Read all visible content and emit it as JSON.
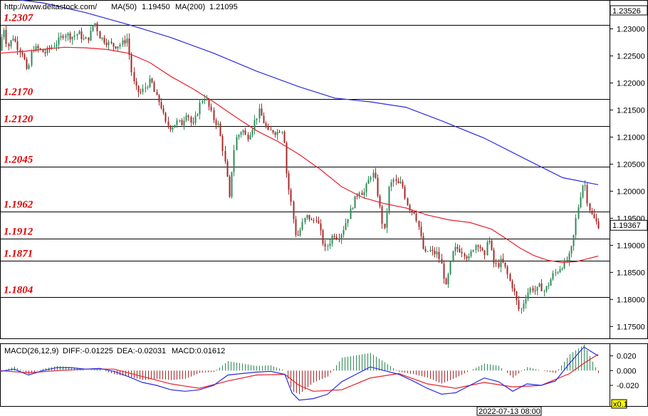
{
  "header": {
    "site": "http://www.deltastock.com/",
    "ma50_label": "MA(50)",
    "ma50_value": "1.19450",
    "ma200_label": "MA(200)",
    "ma200_value": "1.21095",
    "top_price": "1.23526",
    "current_price": "1.19367"
  },
  "macd_header": {
    "name": "MACD(26,12,9)",
    "diff": "DIFF:-0.01225",
    "dea": "DEA:-0.02031",
    "macd": "MACD:0.01612"
  },
  "footer": {
    "timestamp": "2022-07-13 08:00",
    "zoom": "x0.1"
  },
  "colors": {
    "bull": "#2e8b57",
    "bear": "#a52a2a",
    "ma50": "#e8202a",
    "ma200": "#2a2ae0",
    "level_text": "#e00000",
    "hist": "#2e8b57",
    "hist_neg": "#a52a2a",
    "diff": "#2a2ae0",
    "dea": "#e8202a"
  },
  "chart_data": [
    {
      "type": "candlestick",
      "title": "",
      "ylim": [
        1.1728,
        1.2352
      ],
      "yticks": [
        "1.23000",
        "1.22500",
        "1.22000",
        "1.21500",
        "1.21000",
        "1.20500",
        "1.20000",
        "1.19500",
        "1.19000",
        "1.18500",
        "1.18000",
        "1.17500"
      ],
      "ytick_values": [
        1.23,
        1.225,
        1.22,
        1.215,
        1.21,
        1.205,
        1.2,
        1.195,
        1.19,
        1.185,
        1.18,
        1.175
      ],
      "levels": [
        {
          "label": "1.2307",
          "value": 1.2307
        },
        {
          "label": "1.2170",
          "value": 1.217
        },
        {
          "label": "1.2120",
          "value": 1.212
        },
        {
          "label": "1.2045",
          "value": 1.2045
        },
        {
          "label": "1.1962",
          "value": 1.1962
        },
        {
          "label": "1.1912",
          "value": 1.1912
        },
        {
          "label": "1.1871",
          "value": 1.1871
        },
        {
          "label": "1.1804",
          "value": 1.1804
        }
      ],
      "close_path": [
        [
          0,
          1.226
        ],
        [
          4,
          1.231
        ],
        [
          10,
          1.2265
        ],
        [
          18,
          1.2285
        ],
        [
          25,
          1.2265
        ],
        [
          32,
          1.2255
        ],
        [
          38,
          1.2215
        ],
        [
          45,
          1.2265
        ],
        [
          55,
          1.2262
        ],
        [
          62,
          1.2255
        ],
        [
          70,
          1.2265
        ],
        [
          80,
          1.2275
        ],
        [
          90,
          1.2292
        ],
        [
          100,
          1.2285
        ],
        [
          110,
          1.2292
        ],
        [
          118,
          1.2278
        ],
        [
          125,
          1.2285
        ],
        [
          132,
          1.2315
        ],
        [
          140,
          1.2285
        ],
        [
          150,
          1.2275
        ],
        [
          160,
          1.2268
        ],
        [
          170,
          1.2272
        ],
        [
          178,
          1.2282
        ],
        [
          182,
          1.2245
        ],
        [
          186,
          1.2205
        ],
        [
          192,
          1.2185
        ],
        [
          198,
          1.2182
        ],
        [
          205,
          1.2195
        ],
        [
          212,
          1.2205
        ],
        [
          218,
          1.2175
        ],
        [
          225,
          1.2162
        ],
        [
          232,
          1.2125
        ],
        [
          240,
          1.2118
        ],
        [
          248,
          1.2128
        ],
        [
          255,
          1.2125
        ],
        [
          262,
          1.2148
        ],
        [
          270,
          1.2118
        ],
        [
          276,
          1.2142
        ],
        [
          282,
          1.2168
        ],
        [
          288,
          1.2175
        ],
        [
          294,
          1.2152
        ],
        [
          300,
          1.2132
        ],
        [
          306,
          1.2122
        ],
        [
          312,
          1.2082
        ],
        [
          318,
          1.2032
        ],
        [
          322,
          1.1985
        ],
        [
          326,
          1.2052
        ],
        [
          330,
          1.2095
        ],
        [
          335,
          1.2105
        ],
        [
          340,
          1.2115
        ],
        [
          346,
          1.2098
        ],
        [
          352,
          1.2112
        ],
        [
          358,
          1.2132
        ],
        [
          364,
          1.2148
        ],
        [
          370,
          1.2128
        ],
        [
          376,
          1.2108
        ],
        [
          382,
          1.2112
        ],
        [
          388,
          1.2108
        ],
        [
          394,
          1.2115
        ],
        [
          398,
          1.2112
        ],
        [
          401,
          1.2045
        ],
        [
          404,
          1.2012
        ],
        [
          408,
          1.1982
        ],
        [
          412,
          1.1945
        ],
        [
          416,
          1.1912
        ],
        [
          420,
          1.1925
        ],
        [
          426,
          1.1945
        ],
        [
          432,
          1.1955
        ],
        [
          438,
          1.1942
        ],
        [
          444,
          1.1952
        ],
        [
          450,
          1.1922
        ],
        [
          456,
          1.1892
        ],
        [
          462,
          1.1905
        ],
        [
          468,
          1.1922
        ],
        [
          474,
          1.1915
        ],
        [
          480,
          1.1925
        ],
        [
          486,
          1.1945
        ],
        [
          492,
          1.1965
        ],
        [
          498,
          1.1985
        ],
        [
          504,
          1.2002
        ],
        [
          510,
          1.1995
        ],
        [
          516,
          1.2015
        ],
        [
          522,
          1.2035
        ],
        [
          526,
          1.2025
        ],
        [
          530,
          1.1995
        ],
        [
          536,
          1.1945
        ],
        [
          540,
          1.1925
        ],
        [
          546,
          1.2005
        ],
        [
          552,
          1.2022
        ],
        [
          558,
          1.2012
        ],
        [
          564,
          1.2015
        ],
        [
          570,
          1.1982
        ],
        [
          576,
          1.1965
        ],
        [
          582,
          1.1962
        ],
        [
          588,
          1.1932
        ],
        [
          592,
          1.1905
        ],
        [
          596,
          1.1882
        ],
        [
          602,
          1.1892
        ],
        [
          608,
          1.1885
        ],
        [
          614,
          1.1885
        ],
        [
          620,
          1.1862
        ],
        [
          626,
          1.1822
        ],
        [
          632,
          1.1862
        ],
        [
          636,
          1.1888
        ],
        [
          640,
          1.1895
        ],
        [
          646,
          1.1892
        ],
        [
          652,
          1.1885
        ],
        [
          658,
          1.1875
        ],
        [
          664,
          1.1895
        ],
        [
          670,
          1.1905
        ],
        [
          676,
          1.1892
        ],
        [
          680,
          1.1872
        ],
        [
          684,
          1.1915
        ],
        [
          688,
          1.1905
        ],
        [
          692,
          1.1868
        ],
        [
          698,
          1.1862
        ],
        [
          704,
          1.1872
        ],
        [
          710,
          1.1855
        ],
        [
          716,
          1.1832
        ],
        [
          720,
          1.1822
        ],
        [
          726,
          1.1792
        ],
        [
          730,
          1.1775
        ],
        [
          734,
          1.1792
        ],
        [
          740,
          1.1812
        ],
        [
          746,
          1.1822
        ],
        [
          752,
          1.1815
        ],
        [
          758,
          1.1825
        ],
        [
          764,
          1.1815
        ],
        [
          770,
          1.1828
        ],
        [
          776,
          1.1845
        ],
        [
          782,
          1.1852
        ],
        [
          788,
          1.1862
        ],
        [
          794,
          1.1868
        ],
        [
          800,
          1.1882
        ],
        [
          804,
          1.1905
        ],
        [
          808,
          1.1945
        ],
        [
          812,
          1.1975
        ],
        [
          816,
          1.2002
        ],
        [
          820,
          1.2022
        ],
        [
          824,
          1.1985
        ],
        [
          828,
          1.1965
        ],
        [
          832,
          1.1952
        ],
        [
          836,
          1.1945
        ],
        [
          840,
          1.1937
        ]
      ],
      "ma50": [
        [
          0,
          1.2255
        ],
        [
          30,
          1.2258
        ],
        [
          60,
          1.2262
        ],
        [
          90,
          1.2266
        ],
        [
          120,
          1.2265
        ],
        [
          150,
          1.2262
        ],
        [
          180,
          1.2255
        ],
        [
          210,
          1.2238
        ],
        [
          240,
          1.2212
        ],
        [
          270,
          1.219
        ],
        [
          300,
          1.2165
        ],
        [
          330,
          1.2138
        ],
        [
          360,
          1.2112
        ],
        [
          390,
          1.2092
        ],
        [
          420,
          1.2068
        ],
        [
          450,
          1.204
        ],
        [
          480,
          1.2008
        ],
        [
          510,
          1.1988
        ],
        [
          540,
          1.1977
        ],
        [
          570,
          1.1969
        ],
        [
          600,
          1.1956
        ],
        [
          630,
          1.1947
        ],
        [
          660,
          1.1942
        ],
        [
          690,
          1.193
        ],
        [
          710,
          1.1913
        ],
        [
          730,
          1.1895
        ],
        [
          750,
          1.1881
        ],
        [
          770,
          1.1872
        ],
        [
          790,
          1.1868
        ],
        [
          810,
          1.187
        ],
        [
          825,
          1.1875
        ],
        [
          840,
          1.188
        ]
      ],
      "ma200": [
        [
          0,
          1.2358
        ],
        [
          60,
          1.2348
        ],
        [
          120,
          1.233
        ],
        [
          180,
          1.2308
        ],
        [
          240,
          1.2284
        ],
        [
          300,
          1.2255
        ],
        [
          360,
          1.2222
        ],
        [
          420,
          1.2193
        ],
        [
          470,
          1.2172
        ],
        [
          520,
          1.2165
        ],
        [
          570,
          1.2155
        ],
        [
          620,
          1.213
        ],
        [
          680,
          1.2098
        ],
        [
          740,
          1.2058
        ],
        [
          790,
          1.2025
        ],
        [
          840,
          1.2012
        ]
      ]
    },
    {
      "type": "macd",
      "title": "",
      "ylim": [
        -0.048,
        0.036
      ],
      "yticks": [
        "0.020",
        "0.000",
        "-0.020"
      ],
      "ytick_values": [
        0.02,
        0.0,
        -0.02
      ],
      "diff": [
        [
          0,
          -0.001
        ],
        [
          20,
          0.002
        ],
        [
          40,
          -0.006
        ],
        [
          60,
          0.0
        ],
        [
          80,
          0.004
        ],
        [
          100,
          0.004
        ],
        [
          120,
          0.002
        ],
        [
          140,
          0.003
        ],
        [
          160,
          -0.001
        ],
        [
          180,
          -0.008
        ],
        [
          200,
          -0.016
        ],
        [
          220,
          -0.02
        ],
        [
          240,
          -0.026
        ],
        [
          260,
          -0.028
        ],
        [
          280,
          -0.026
        ],
        [
          300,
          -0.02
        ],
        [
          320,
          -0.006
        ],
        [
          340,
          -0.004
        ],
        [
          360,
          -0.002
        ],
        [
          380,
          -0.001
        ],
        [
          400,
          -0.005
        ],
        [
          410,
          -0.03
        ],
        [
          420,
          -0.04
        ],
        [
          440,
          -0.038
        ],
        [
          460,
          -0.032
        ],
        [
          480,
          -0.015
        ],
        [
          500,
          -0.005
        ],
        [
          520,
          0.005
        ],
        [
          540,
          0.0
        ],
        [
          560,
          -0.005
        ],
        [
          580,
          -0.014
        ],
        [
          600,
          -0.024
        ],
        [
          620,
          -0.032
        ],
        [
          640,
          -0.03
        ],
        [
          660,
          -0.02
        ],
        [
          680,
          -0.01
        ],
        [
          700,
          -0.015
        ],
        [
          720,
          -0.028
        ],
        [
          740,
          -0.018
        ],
        [
          760,
          -0.02
        ],
        [
          780,
          -0.014
        ],
        [
          800,
          0.01
        ],
        [
          820,
          0.032
        ],
        [
          840,
          0.02
        ]
      ],
      "dea": [
        [
          0,
          0.0
        ],
        [
          40,
          -0.003
        ],
        [
          80,
          0.0
        ],
        [
          120,
          0.002
        ],
        [
          160,
          0.002
        ],
        [
          200,
          -0.008
        ],
        [
          240,
          -0.018
        ],
        [
          280,
          -0.024
        ],
        [
          320,
          -0.014
        ],
        [
          360,
          -0.006
        ],
        [
          400,
          -0.005
        ],
        [
          420,
          -0.02
        ],
        [
          440,
          -0.028
        ],
        [
          480,
          -0.026
        ],
        [
          520,
          -0.01
        ],
        [
          560,
          -0.004
        ],
        [
          600,
          -0.018
        ],
        [
          640,
          -0.024
        ],
        [
          680,
          -0.016
        ],
        [
          720,
          -0.022
        ],
        [
          760,
          -0.02
        ],
        [
          800,
          -0.004
        ],
        [
          820,
          0.01
        ],
        [
          840,
          0.022
        ]
      ]
    }
  ]
}
